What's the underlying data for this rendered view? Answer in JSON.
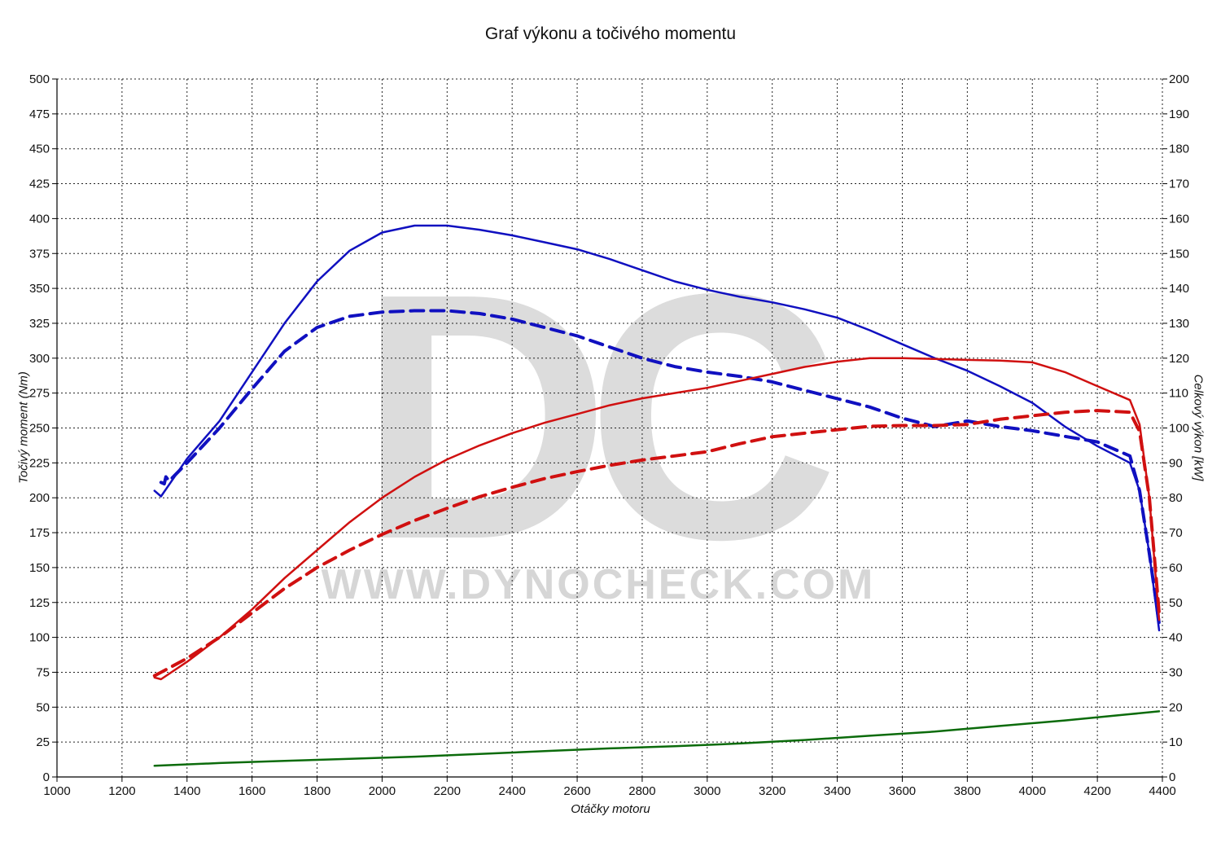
{
  "chart_data": {
    "type": "line",
    "title": "Graf výkonu a točivého momentu",
    "xlabel": "Otáčky motoru",
    "ylabel": "Točivý moment (Nm)",
    "y2label": "Celkový výkon [kW]",
    "xlim": [
      1000,
      4400
    ],
    "ylim": [
      0,
      500
    ],
    "y2lim": [
      0,
      200
    ],
    "x_ticks": [
      1000,
      1200,
      1400,
      1600,
      1800,
      2000,
      2200,
      2400,
      2600,
      2800,
      3000,
      3200,
      3400,
      3600,
      3800,
      4000,
      4200,
      4400
    ],
    "y_ticks": [
      0,
      25,
      50,
      75,
      100,
      125,
      150,
      175,
      200,
      225,
      250,
      275,
      300,
      325,
      350,
      375,
      400,
      425,
      450,
      475,
      500
    ],
    "y2_ticks": [
      0,
      10,
      20,
      30,
      40,
      50,
      60,
      70,
      80,
      90,
      100,
      110,
      120,
      130,
      140,
      150,
      160,
      170,
      180,
      190,
      200
    ],
    "grid": true,
    "watermark": {
      "logo": "DC",
      "text": "WWW.DYNOCHECK.COM"
    },
    "series": [
      {
        "axis": "left",
        "color": "#1010c0",
        "style": "solid",
        "x": [
          1300,
          1320,
          1400,
          1500,
          1600,
          1700,
          1800,
          1900,
          2000,
          2100,
          2200,
          2300,
          2400,
          2500,
          2600,
          2700,
          2800,
          2900,
          3000,
          3100,
          3200,
          3300,
          3400,
          3500,
          3600,
          3700,
          3800,
          3900,
          4000,
          4100,
          4200,
          4300,
          4330,
          4360,
          4390
        ],
        "y": [
          205,
          201,
          228,
          255,
          290,
          325,
          355,
          377,
          390,
          395,
          395,
          392,
          388,
          383,
          378,
          371,
          363,
          355,
          349,
          344,
          340,
          335,
          329,
          320,
          310,
          300,
          291,
          280,
          268,
          251,
          237,
          225,
          205,
          160,
          105
        ]
      },
      {
        "axis": "left",
        "color": "#1010c0",
        "style": "dashed",
        "x": [
          1320,
          1330,
          1335,
          1345,
          1400,
          1500,
          1600,
          1700,
          1800,
          1900,
          2000,
          2100,
          2200,
          2300,
          2400,
          2500,
          2600,
          2700,
          2800,
          2900,
          3000,
          3100,
          3200,
          3300,
          3400,
          3500,
          3600,
          3700,
          3800,
          3900,
          4000,
          4100,
          4200,
          4300,
          4330,
          4360,
          4390
        ],
        "y": [
          211,
          210,
          215,
          212,
          225,
          250,
          278,
          305,
          322,
          330,
          333,
          334,
          334,
          332,
          328,
          322,
          316,
          308,
          300,
          294,
          290,
          287,
          283,
          277,
          271,
          265,
          257,
          251,
          255,
          251,
          248,
          244,
          240,
          230,
          205,
          160,
          110
        ]
      },
      {
        "axis": "right",
        "color": "#d01010",
        "style": "solid",
        "x": [
          1300,
          1320,
          1400,
          1500,
          1600,
          1700,
          1800,
          1900,
          2000,
          2100,
          2200,
          2300,
          2400,
          2500,
          2600,
          2700,
          2800,
          2900,
          3000,
          3100,
          3200,
          3300,
          3400,
          3500,
          3600,
          3700,
          3800,
          3900,
          4000,
          4100,
          4200,
          4300,
          4330,
          4360,
          4390
        ],
        "y": [
          28.5,
          28,
          33,
          40,
          48,
          57,
          65,
          73,
          80,
          86,
          91,
          95,
          98.5,
          101.5,
          104,
          106.5,
          108.5,
          110,
          111.5,
          113.5,
          115.5,
          117.5,
          119,
          120,
          120,
          119.8,
          119.5,
          119.3,
          118.8,
          116,
          112,
          108,
          101,
          80,
          45
        ]
      },
      {
        "axis": "right",
        "color": "#d01010",
        "style": "dashed",
        "x": [
          1300,
          1320,
          1400,
          1500,
          1600,
          1700,
          1800,
          1900,
          2000,
          2100,
          2200,
          2300,
          2400,
          2500,
          2600,
          2700,
          2800,
          2900,
          3000,
          3100,
          3200,
          3300,
          3400,
          3500,
          3600,
          3700,
          3800,
          3900,
          4000,
          4100,
          4200,
          4300,
          4330,
          4360,
          4390
        ],
        "y": [
          29,
          30,
          34,
          40,
          47,
          54,
          60,
          65,
          69.5,
          73.5,
          77,
          80.3,
          83,
          85.5,
          87.5,
          89.3,
          90.8,
          92,
          93.2,
          95.5,
          97.5,
          98.5,
          99.5,
          100.5,
          100.7,
          100.7,
          101,
          102.5,
          103.5,
          104.5,
          105,
          104.5,
          99,
          80,
          47
        ]
      },
      {
        "axis": "left",
        "color": "#0b6b0b",
        "style": "solid",
        "x": [
          1300,
          1500,
          1700,
          1900,
          2100,
          2300,
          2500,
          2700,
          2900,
          3100,
          3300,
          3500,
          3700,
          3900,
          4100,
          4300,
          4390
        ],
        "y": [
          8,
          10,
          11.5,
          13,
          14.5,
          16.5,
          18.5,
          20.5,
          22,
          24,
          26.5,
          29.5,
          32.5,
          36.5,
          40.5,
          45,
          47
        ]
      }
    ]
  }
}
